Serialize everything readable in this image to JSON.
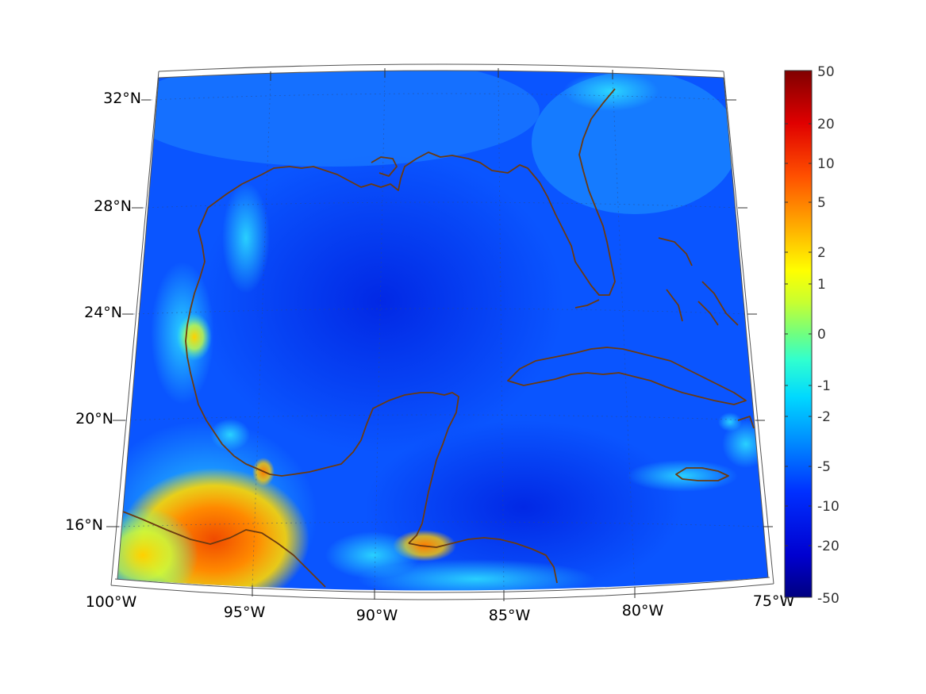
{
  "map": {
    "projection": "lambert-conic",
    "lon_range": [
      -100,
      -75
    ],
    "lat_range": [
      13.5,
      33
    ],
    "lat_labels": [
      "32°N",
      "28°N",
      "24°N",
      "20°N",
      "16°N"
    ],
    "lon_labels": [
      "100°W",
      "95°W",
      "90°W",
      "85°W",
      "80°W",
      "75°W"
    ],
    "coastline_color": "#6b3a10",
    "field_dominant_color": "#0a4cff",
    "features": [
      "Gulf of Mexico",
      "Florida",
      "Cuba",
      "Yucatan Peninsula",
      "Jamaica",
      "Bahamas"
    ]
  },
  "colorbar": {
    "colormap": "jet",
    "labels": [
      "50",
      "20",
      "10",
      "5",
      "2",
      "1",
      "0",
      "-1",
      "-2",
      "-5",
      "-10",
      "-20",
      "-50"
    ],
    "range": [
      -50,
      50
    ]
  }
}
